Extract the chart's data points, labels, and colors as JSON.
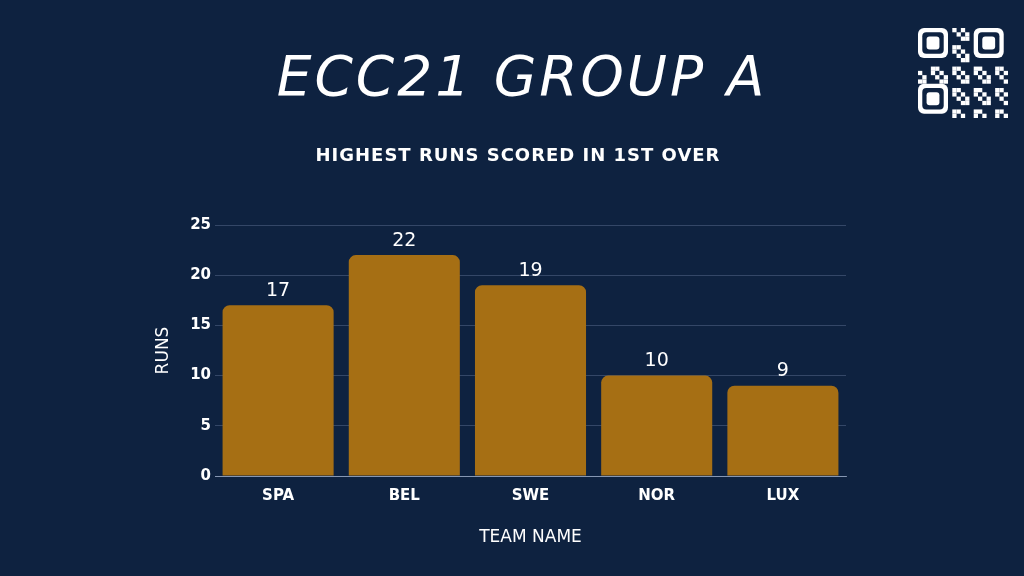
{
  "chart_data": {
    "type": "bar",
    "title": "ECC21 GROUP A",
    "subtitle": "HIGHEST RUNS SCORED IN 1ST OVER",
    "xlabel": "TEAM NAME",
    "ylabel": "RUNS",
    "categories": [
      "SPA",
      "BEL",
      "SWE",
      "NOR",
      "LUX"
    ],
    "values": [
      17,
      22,
      19,
      10,
      9
    ],
    "color": "#a66f14",
    "ylim": [
      0,
      25
    ],
    "yticks": [
      0,
      5,
      10,
      15,
      20,
      25
    ],
    "grid": "y",
    "data_labels": true
  }
}
